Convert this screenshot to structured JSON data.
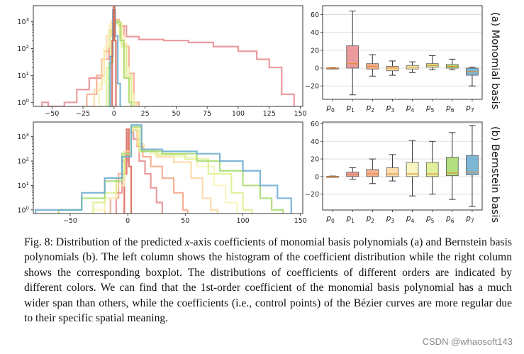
{
  "figure": {
    "row_labels": [
      "(a) Monomial basis",
      "(b) Bernstein basis"
    ]
  },
  "caption": {
    "prefix": "Fig. 8: Distribution of the predicted ",
    "var": "x",
    "rest": "-axis coefficients of monomial basis polynomials (a) and Bernstein basis polynomials (b). The left column shows the histogram of the coefficient distribution while the right column shows the corresponding boxplot. The distributions of coefficients of different orders are indicated by different colors. We can find that the 1st-order coefficient of the monomial basis polynomial has a much wider span than others, while the coefficients (i.e., control points) of the Bézier curves are more regular due to their specific spatial meaning."
  },
  "watermark": "CSDN @whaosoft143",
  "colors": {
    "p0": "#d6604d",
    "p1": "#e8898c",
    "p2": "#f4a582",
    "p3": "#fdd6a0",
    "p4": "#f7f4b9",
    "p5": "#d9ef8b",
    "p6": "#a6d96a",
    "p7": "#67a9cf"
  },
  "chart_data": [
    {
      "id": "hist-monomial",
      "type": "histogram",
      "title": "",
      "yscale": "log",
      "xlim": [
        -65,
        152
      ],
      "xticks": [
        -50,
        -25,
        0,
        25,
        50,
        75,
        100,
        125,
        150
      ],
      "yticks_labels": [
        "10^0",
        "10^1",
        "10^2",
        "10^3"
      ],
      "ylim_log": [
        -0.15,
        3.6
      ],
      "series": [
        {
          "key": "p1",
          "bins": [
            [
              -58,
              -53,
              1
            ],
            [
              -53,
              -40,
              0.25
            ],
            [
              -40,
              -30,
              1
            ],
            [
              -30,
              -20,
              3
            ],
            [
              -20,
              -10,
              8
            ],
            [
              -10,
              -4,
              40
            ],
            [
              -4,
              0,
              300
            ],
            [
              0,
              4,
              900
            ],
            [
              4,
              10,
              700
            ],
            [
              10,
              20,
              280
            ],
            [
              20,
              40,
              220
            ],
            [
              40,
              60,
              200
            ],
            [
              60,
              80,
              170
            ],
            [
              80,
              100,
              120
            ],
            [
              100,
              115,
              80
            ],
            [
              115,
              125,
              40
            ],
            [
              125,
              135,
              20
            ],
            [
              135,
              145,
              2
            ]
          ]
        },
        {
          "key": "p2",
          "bins": [
            [
              -22,
              -14,
              2
            ],
            [
              -14,
              -8,
              10
            ],
            [
              -8,
              -4,
              80
            ],
            [
              -4,
              0,
              500
            ],
            [
              0,
              4,
              1200
            ],
            [
              4,
              8,
              700
            ],
            [
              8,
              12,
              120
            ],
            [
              12,
              16,
              12
            ],
            [
              16,
              20,
              1
            ]
          ]
        },
        {
          "key": "p3",
          "bins": [
            [
              -16,
              -10,
              3
            ],
            [
              -10,
              -6,
              40
            ],
            [
              -6,
              -2,
              300
            ],
            [
              -2,
              2,
              1100
            ],
            [
              2,
              6,
              900
            ],
            [
              6,
              10,
              150
            ],
            [
              10,
              14,
              8
            ],
            [
              14,
              18,
              1
            ]
          ]
        },
        {
          "key": "p4",
          "bins": [
            [
              -12,
              -8,
              5
            ],
            [
              -8,
              -4,
              120
            ],
            [
              -4,
              0,
              800
            ],
            [
              0,
              4,
              1000
            ],
            [
              4,
              8,
              300
            ],
            [
              8,
              12,
              20
            ],
            [
              12,
              16,
              2
            ]
          ]
        },
        {
          "key": "p5",
          "bins": [
            [
              -6,
              -3,
              20
            ],
            [
              -3,
              0,
              500
            ],
            [
              0,
              3,
              1100
            ],
            [
              3,
              6,
              800
            ],
            [
              6,
              10,
              120
            ],
            [
              10,
              14,
              10
            ],
            [
              14,
              16,
              1
            ]
          ]
        },
        {
          "key": "p6",
          "bins": [
            [
              -4,
              -1,
              30
            ],
            [
              -1,
              2,
              900
            ],
            [
              2,
              5,
              1000
            ],
            [
              5,
              8,
              200
            ],
            [
              8,
              12,
              8
            ],
            [
              12,
              14,
              1
            ]
          ]
        },
        {
          "key": "p7",
          "bins": [
            [
              -3,
              -1,
              50
            ],
            [
              -1,
              1,
              2800
            ],
            [
              1,
              3,
              300
            ],
            [
              3,
              5,
              5
            ]
          ]
        },
        {
          "key": "p0",
          "bins": [
            [
              -1.5,
              -0.5,
              200
            ],
            [
              -0.5,
              0.5,
              3500
            ],
            [
              0.5,
              1.5,
              200
            ]
          ]
        }
      ]
    },
    {
      "id": "box-monomial",
      "type": "boxplot",
      "title": "",
      "ylim": [
        -35,
        70
      ],
      "yticks": [
        -20,
        0,
        20,
        40,
        60
      ],
      "categories": [
        "p0",
        "p1",
        "p2",
        "p3",
        "p4",
        "p5",
        "p6",
        "p7"
      ],
      "boxes": [
        {
          "key": "p0",
          "whislo": -0.5,
          "q1": -0.2,
          "med": 0,
          "q3": 0.2,
          "whishi": 0.5
        },
        {
          "key": "p1",
          "whislo": -30,
          "q1": 0,
          "med": 5,
          "q3": 25,
          "whishi": 64
        },
        {
          "key": "p2",
          "whislo": -9,
          "q1": -1,
          "med": 2,
          "q3": 5,
          "whishi": 15
        },
        {
          "key": "p3",
          "whislo": -8,
          "q1": -3,
          "med": 0,
          "q3": 2,
          "whishi": 8
        },
        {
          "key": "p4",
          "whislo": -5,
          "q1": -1,
          "med": 1,
          "q3": 3,
          "whishi": 7
        },
        {
          "key": "p5",
          "whislo": -2,
          "q1": 1,
          "med": 3,
          "q3": 5,
          "whishi": 14
        },
        {
          "key": "p6",
          "whislo": -2,
          "q1": 0,
          "med": 2,
          "q3": 4,
          "whishi": 10
        },
        {
          "key": "p7",
          "whislo": -20,
          "q1": -8,
          "med": -4,
          "q3": 0,
          "whishi": 1
        }
      ]
    },
    {
      "id": "hist-bernstein",
      "type": "histogram",
      "title": "",
      "yscale": "log",
      "xlim": [
        -82,
        152
      ],
      "xticks": [
        -50,
        0,
        50,
        100,
        150
      ],
      "yticks_labels": [
        "10^0",
        "10^1",
        "10^2",
        "10^3"
      ],
      "ylim_log": [
        -0.15,
        3.6
      ],
      "series": [
        {
          "key": "p0",
          "bins": [
            [
              -3,
              -1,
              30
            ],
            [
              -1,
              1,
              2000
            ],
            [
              1,
              3,
              60
            ]
          ]
        },
        {
          "key": "p1",
          "bins": [
            [
              -10,
              -5,
              5
            ],
            [
              -5,
              0,
              100
            ],
            [
              0,
              5,
              1500
            ],
            [
              5,
              10,
              800
            ],
            [
              10,
              15,
              100
            ],
            [
              15,
              20,
              30
            ],
            [
              20,
              25,
              8
            ],
            [
              25,
              30,
              2
            ]
          ]
        },
        {
          "key": "p2",
          "bins": [
            [
              -15,
              -8,
              3
            ],
            [
              -8,
              -2,
              30
            ],
            [
              -2,
              3,
              200
            ],
            [
              3,
              8,
              1800
            ],
            [
              8,
              13,
              400
            ],
            [
              13,
              20,
              150
            ],
            [
              20,
              30,
              60
            ],
            [
              30,
              40,
              20
            ],
            [
              40,
              48,
              5
            ],
            [
              48,
              52,
              1
            ]
          ]
        },
        {
          "key": "p3",
          "bins": [
            [
              -20,
              -10,
              3
            ],
            [
              -10,
              -3,
              20
            ],
            [
              -3,
              3,
              250
            ],
            [
              3,
              8,
              2000
            ],
            [
              8,
              14,
              500
            ],
            [
              14,
              25,
              300
            ],
            [
              25,
              40,
              150
            ],
            [
              40,
              55,
              90
            ],
            [
              55,
              65,
              20
            ],
            [
              65,
              72,
              3
            ],
            [
              72,
              78,
              1
            ]
          ]
        },
        {
          "key": "p4",
          "bins": [
            [
              -30,
              -20,
              1
            ],
            [
              -20,
              -10,
              3
            ],
            [
              -10,
              -3,
              10
            ],
            [
              -3,
              3,
              150
            ],
            [
              3,
              10,
              2200
            ],
            [
              10,
              20,
              300
            ],
            [
              20,
              40,
              200
            ],
            [
              40,
              60,
              150
            ],
            [
              60,
              75,
              60
            ],
            [
              75,
              85,
              10
            ],
            [
              85,
              95,
              2
            ]
          ]
        },
        {
          "key": "p5",
          "bins": [
            [
              -30,
              -20,
              2
            ],
            [
              -20,
              -10,
              5
            ],
            [
              -10,
              -3,
              20
            ],
            [
              -3,
              3,
              200
            ],
            [
              3,
              10,
              1800
            ],
            [
              10,
              25,
              250
            ],
            [
              25,
              50,
              180
            ],
            [
              50,
              70,
              120
            ],
            [
              70,
              90,
              30
            ],
            [
              90,
              100,
              5
            ],
            [
              100,
              108,
              1
            ]
          ]
        },
        {
          "key": "p6",
          "bins": [
            [
              -60,
              -40,
              1
            ],
            [
              -40,
              -20,
              3
            ],
            [
              -20,
              -5,
              15
            ],
            [
              -5,
              3,
              200
            ],
            [
              3,
              12,
              2500
            ],
            [
              12,
              30,
              250
            ],
            [
              30,
              60,
              200
            ],
            [
              60,
              80,
              100
            ],
            [
              80,
              100,
              40
            ],
            [
              100,
              115,
              10
            ],
            [
              115,
              125,
              3
            ],
            [
              125,
              135,
              1
            ]
          ]
        },
        {
          "key": "p7",
          "bins": [
            [
              -80,
              -60,
              1
            ],
            [
              -60,
              -40,
              1
            ],
            [
              -40,
              -20,
              5
            ],
            [
              -20,
              -5,
              20
            ],
            [
              -5,
              3,
              150
            ],
            [
              3,
              12,
              3000
            ],
            [
              12,
              30,
              300
            ],
            [
              30,
              60,
              250
            ],
            [
              60,
              80,
              200
            ],
            [
              80,
              100,
              100
            ],
            [
              100,
              115,
              40
            ],
            [
              115,
              130,
              10
            ],
            [
              130,
              142,
              3
            ]
          ]
        }
      ]
    },
    {
      "id": "box-bernstein",
      "type": "boxplot",
      "title": "",
      "ylim": [
        -38,
        62
      ],
      "yticks": [
        -20,
        0,
        20,
        40,
        60
      ],
      "categories": [
        "p0",
        "p1",
        "p2",
        "p3",
        "p4",
        "p5",
        "p6",
        "p7"
      ],
      "boxes": [
        {
          "key": "p0",
          "whislo": -0.6,
          "q1": -0.3,
          "med": 0,
          "q3": 0.3,
          "whishi": 0.6
        },
        {
          "key": "p1",
          "whislo": -3,
          "q1": 0,
          "med": 2,
          "q3": 5,
          "whishi": 10
        },
        {
          "key": "p2",
          "whislo": -8,
          "q1": 0,
          "med": 3,
          "q3": 8,
          "whishi": 20
        },
        {
          "key": "p3",
          "whislo": -5,
          "q1": 0,
          "med": 3,
          "q3": 10,
          "whishi": 25
        },
        {
          "key": "p4",
          "whislo": -22,
          "q1": 0,
          "med": 3,
          "q3": 16,
          "whishi": 41
        },
        {
          "key": "p5",
          "whislo": -20,
          "q1": 0,
          "med": 3,
          "q3": 16,
          "whishi": 40
        },
        {
          "key": "p6",
          "whislo": -26,
          "q1": 1,
          "med": 4,
          "q3": 22,
          "whishi": 50
        },
        {
          "key": "p7",
          "whislo": -34,
          "q1": 2,
          "med": 5,
          "q3": 24,
          "whishi": 58
        }
      ]
    }
  ]
}
